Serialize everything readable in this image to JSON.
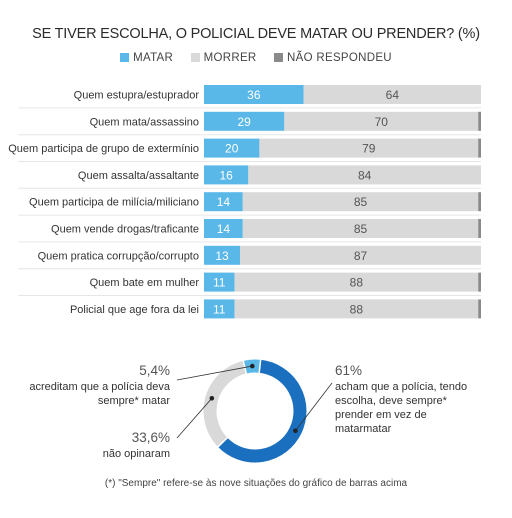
{
  "title": "SE TIVER ESCOLHA, O POLICIAL DEVE MATAR OU PRENDER? (%)",
  "legend": [
    {
      "label": "MATAR",
      "color": "#5ab8e8"
    },
    {
      "label": "MORRER",
      "color": "#d9d9d9"
    },
    {
      "label": "NÃO RESPONDEU",
      "color": "#8a8a8a"
    }
  ],
  "chart_data": [
    {
      "type": "bar",
      "orientation": "horizontal",
      "stacked": true,
      "categories": [
        "Quem estupra/estuprador",
        "Quem mata/assassino",
        "Quem participa de grupo de extermínio",
        "Quem assalta/assaltante",
        "Quem participa de milícia/miliciano",
        "Quem vende drogas/traficante",
        "Quem pratica corrupção/corrupto",
        "Quem bate em mulher",
        "Policial que age fora da lei"
      ],
      "series": [
        {
          "name": "MATAR",
          "values": [
            36,
            29,
            20,
            16,
            14,
            14,
            13,
            11,
            11
          ],
          "color": "#5ab8e8"
        },
        {
          "name": "MORRER",
          "values": [
            64,
            70,
            79,
            84,
            85,
            85,
            87,
            88,
            88
          ],
          "color": "#d9d9d9"
        },
        {
          "name": "NÃO RESPONDEU",
          "values": [
            0,
            1,
            1,
            0,
            1,
            1,
            0,
            1,
            1
          ],
          "color": "#8a8a8a"
        }
      ],
      "xlim": [
        0,
        100
      ],
      "legend_position": "top"
    },
    {
      "type": "pie",
      "donut": true,
      "slices": [
        {
          "value": 61,
          "pct_label": "61%",
          "text": "acham que a polícia, tendo escolha, deve sempre* prender em vez de matarmatar",
          "color": "#1a6fbf"
        },
        {
          "value": 33.6,
          "pct_label": "33,6%",
          "text": "não opinaram",
          "color": "#d9d9d9"
        },
        {
          "value": 5.4,
          "pct_label": "5,4%",
          "text": "acreditam que a polícia deva sempre* matar",
          "color": "#5ab8e8"
        }
      ]
    }
  ],
  "footnote": "(*) \"Sempre\" refere-se às nove situações do gráfico de barras acima"
}
